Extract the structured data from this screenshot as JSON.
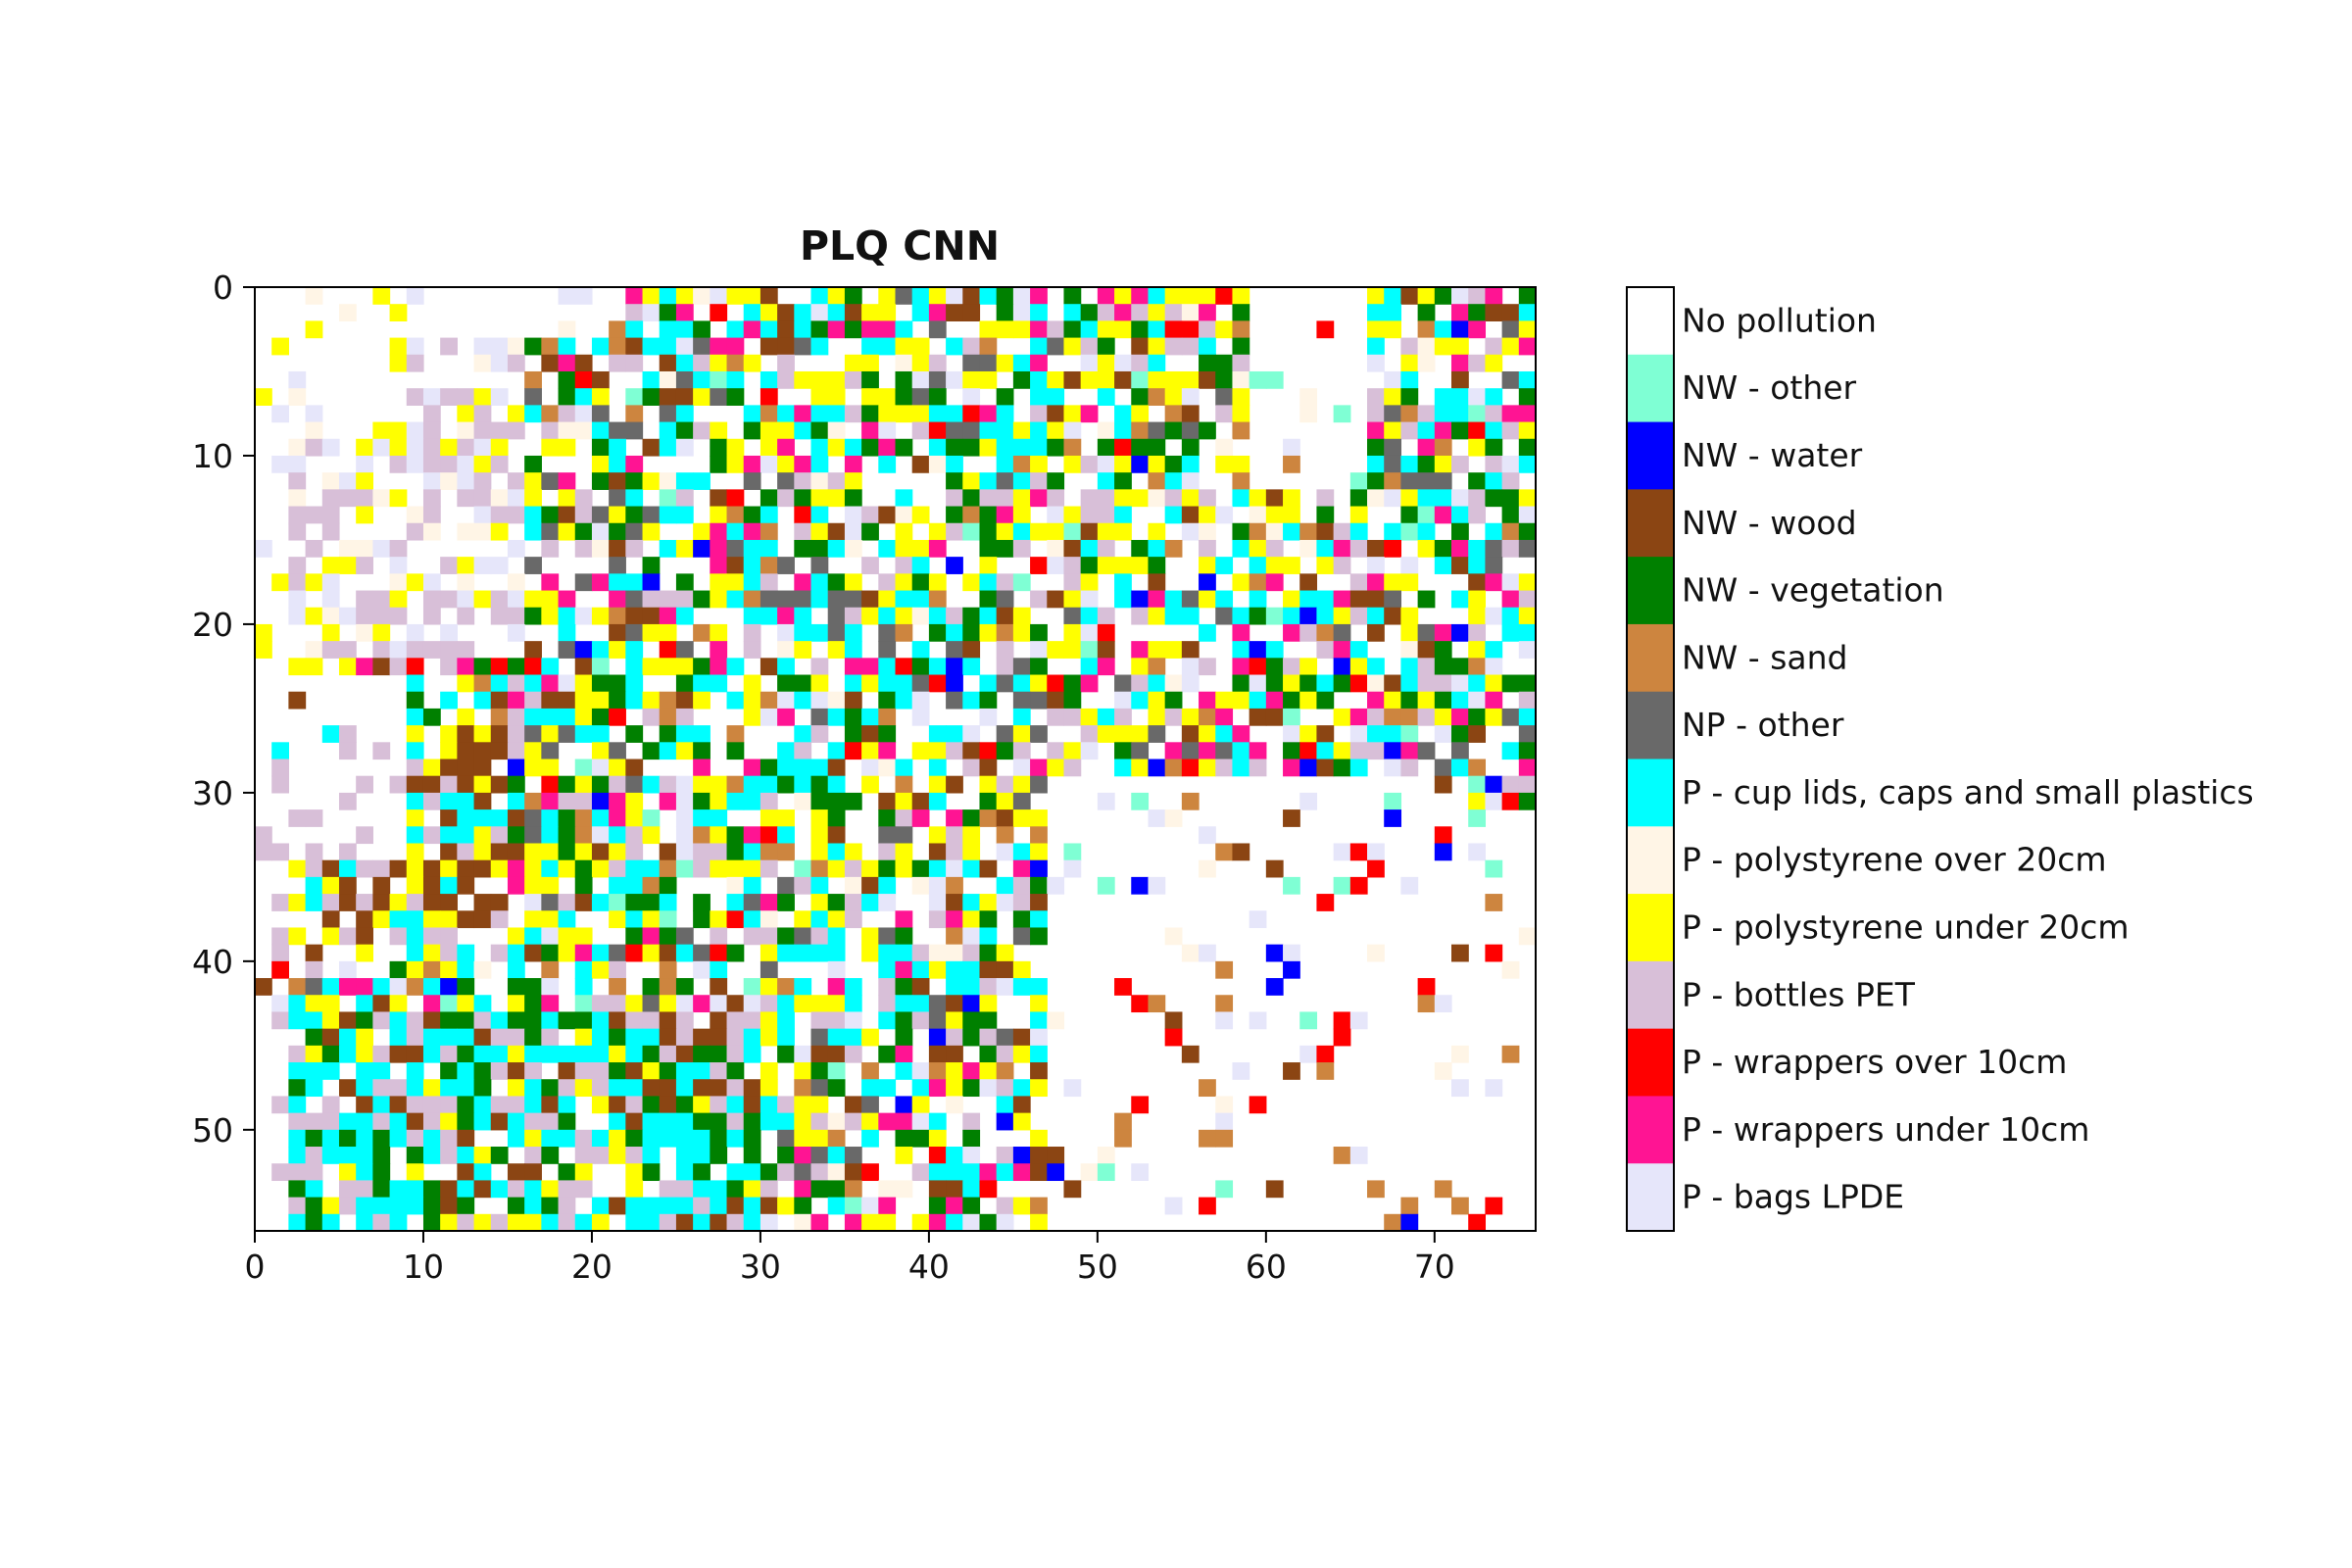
{
  "chart_data": {
    "type": "heatmap",
    "title": "PLQ CNN",
    "xlabel": "",
    "ylabel": "",
    "xlim": [
      0,
      76
    ],
    "ylim": [
      56,
      0
    ],
    "x_ticks": [
      "0",
      "10",
      "20",
      "30",
      "40",
      "50",
      "60",
      "70"
    ],
    "y_ticks": [
      "0",
      "10",
      "20",
      "30",
      "40",
      "50"
    ],
    "grid": false,
    "n_cols": 76,
    "n_rows": 56,
    "legend": "colorbar-right",
    "classes": [
      {
        "label": "No pollution",
        "color": "#ffffff"
      },
      {
        "label": "NW - other",
        "color": "#7fffd4"
      },
      {
        "label": "NW - water",
        "color": "#0000ff"
      },
      {
        "label": "NW - wood",
        "color": "#8b4513"
      },
      {
        "label": "NW - vegetation",
        "color": "#008000"
      },
      {
        "label": "NW - sand",
        "color": "#cd853f"
      },
      {
        "label": "NP - other",
        "color": "#696969"
      },
      {
        "label": "P - cup lids, caps and small plastics",
        "color": "#00ffff"
      },
      {
        "label": "P - polystyrene over 20cm",
        "color": "#fff5e6"
      },
      {
        "label": "P - polystyrene under 20cm",
        "color": "#ffff00"
      },
      {
        "label": "P - bottles PET",
        "color": "#d8bfd8"
      },
      {
        "label": "P - wrappers over 10cm",
        "color": "#ff0000"
      },
      {
        "label": "P - wrappers under 10cm",
        "color": "#ff1493"
      },
      {
        "label": "P - bags LPDE",
        "color": "#e6e6fa"
      }
    ]
  }
}
